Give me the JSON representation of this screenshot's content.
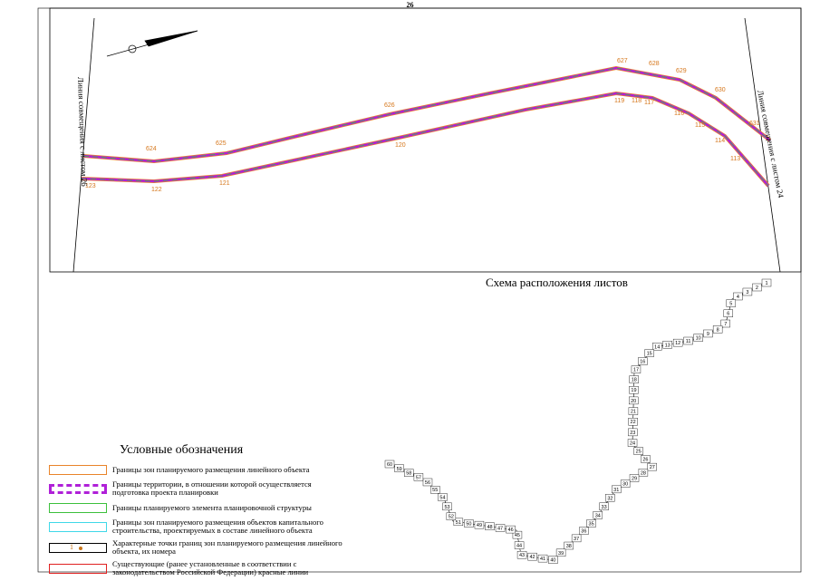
{
  "page": {
    "number": "26"
  },
  "map": {
    "left_side_label": "Линия совмещения с листом 26",
    "right_side_label": "Линия совмещения с листом 24",
    "upper_points": [
      "624",
      "625",
      "626",
      "627",
      "628",
      "629",
      "630",
      "631"
    ],
    "lower_points": [
      "123",
      "122",
      "121",
      "120",
      "119",
      "118",
      "117",
      "116",
      "115",
      "114",
      "113"
    ]
  },
  "sheet_scheme": {
    "caption": "Схема расположения листов",
    "sheets": [
      "1",
      "2",
      "3",
      "4",
      "5",
      "6",
      "7",
      "8",
      "9",
      "10",
      "11",
      "12",
      "13",
      "14",
      "15",
      "16",
      "17",
      "18",
      "19",
      "20",
      "21",
      "22",
      "23",
      "24",
      "25",
      "26",
      "27",
      "28",
      "29",
      "30",
      "31",
      "32",
      "33",
      "34",
      "35",
      "36",
      "37",
      "38",
      "39",
      "40",
      "41",
      "42",
      "43",
      "44",
      "45",
      "46",
      "47",
      "48",
      "49",
      "50",
      "51",
      "52",
      "53",
      "54",
      "55",
      "56",
      "57",
      "58",
      "59",
      "60"
    ]
  },
  "legend": {
    "title": "Условные обозначения",
    "items": [
      {
        "symbol": "orange-outline",
        "text": "Границы зон планируемого размещения линейного объекта"
      },
      {
        "symbol": "purple-dashed",
        "text": "Границы территории, в отношении которой осуществляется подготовка проекта планировки"
      },
      {
        "symbol": "green-outline",
        "text": "Границы планируемого элемента планировочной структуры"
      },
      {
        "symbol": "cyan-outline",
        "text": "Границы зон планируемого размещения объектов капитального строительства, проектируемых в составе линейного объекта"
      },
      {
        "symbol": "point-marker",
        "marker_label": "1",
        "text": "Характерные точки границ зон планируемого размещения линейного объекта, их номера"
      },
      {
        "symbol": "red-outline",
        "text": "Существующие (ранее установленные в соответствии с законодательством Российской Федерации) красные линии"
      }
    ]
  },
  "colors": {
    "orange": "#e9842a",
    "purple": "#b020d8",
    "green": "#3cc03c",
    "cyan": "#3fd8e8",
    "red": "#e02020"
  }
}
